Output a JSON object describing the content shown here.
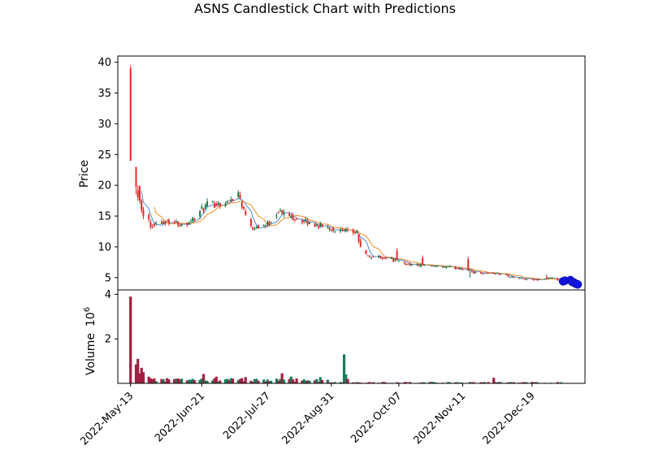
{
  "chart_data": {
    "type": "candlestick",
    "title": "ASNS Candlestick Chart with Predictions",
    "xlabel": "",
    "ylabel": "Price",
    "x_range": [
      "2022-05-06",
      "2023-01-17"
    ],
    "ylim": [
      3,
      41
    ],
    "yticks": [
      5,
      10,
      15,
      20,
      25,
      30,
      35,
      40
    ],
    "xticks": [
      "2022-May-13",
      "2022-Jun-21",
      "2022-Jul-27",
      "2022-Aug-31",
      "2022-Oct-07",
      "2022-Nov-11",
      "2022-Dec-19"
    ],
    "colors": {
      "up": "#1a7a4c",
      "down": "#e02a2a",
      "ma_short": "#4a8fd0",
      "ma_long": "#f28c28",
      "prediction": "#1414e6",
      "volume_up": "#1a7a5a",
      "volume_down": "#a02040"
    },
    "series": [
      {
        "kind": "candles",
        "ohlc_anchors": [
          {
            "date": "2022-05-13",
            "open": 39.0,
            "high": 39.5,
            "low": 24.0,
            "close": 24.0
          },
          {
            "date": "2022-05-16",
            "open": 23.0,
            "high": 23.0,
            "low": 18.5,
            "close": 19.8
          },
          {
            "date": "2022-05-17",
            "open": 19.2,
            "high": 20.0,
            "low": 17.5,
            "close": 18.0
          },
          {
            "date": "2022-05-18",
            "open": 19.8,
            "high": 20.0,
            "low": 17.0,
            "close": 17.5
          },
          {
            "date": "2022-05-19",
            "open": 17.5,
            "high": 17.8,
            "low": 15.5,
            "close": 16.0
          },
          {
            "date": "2022-05-20",
            "open": 16.0,
            "high": 16.5,
            "low": 14.5,
            "close": 15.0
          },
          {
            "date": "2022-05-23",
            "open": 15.2,
            "high": 15.5,
            "low": 14.0,
            "close": 14.5
          },
          {
            "date": "2022-05-24",
            "open": 14.0,
            "high": 14.5,
            "low": 12.8,
            "close": 13.2
          }
        ],
        "close_path": [
          {
            "date": "2022-05-25",
            "close": 13.8
          },
          {
            "date": "2022-06-03",
            "close": 14.3
          },
          {
            "date": "2022-06-10",
            "close": 13.6
          },
          {
            "date": "2022-06-16",
            "close": 14.4
          },
          {
            "date": "2022-06-21",
            "close": 16.0
          },
          {
            "date": "2022-06-24",
            "close": 16.8
          },
          {
            "date": "2022-07-05",
            "close": 17.2
          },
          {
            "date": "2022-07-11",
            "close": 18.8
          },
          {
            "date": "2022-07-14",
            "close": 16.0
          },
          {
            "date": "2022-07-19",
            "close": 13.2
          },
          {
            "date": "2022-07-27",
            "close": 13.6
          },
          {
            "date": "2022-08-02",
            "close": 15.8
          },
          {
            "date": "2022-08-10",
            "close": 14.8
          },
          {
            "date": "2022-08-19",
            "close": 13.8
          },
          {
            "date": "2022-08-31",
            "close": 13.0
          },
          {
            "date": "2022-09-06",
            "close": 12.5
          },
          {
            "date": "2022-09-14",
            "close": 12.3
          },
          {
            "date": "2022-09-16",
            "close": 9.8
          },
          {
            "date": "2022-09-20",
            "close": 8.4
          },
          {
            "date": "2022-09-30",
            "close": 8.3
          },
          {
            "date": "2022-10-07",
            "close": 7.6
          },
          {
            "date": "2022-10-12",
            "close": 7.2
          },
          {
            "date": "2022-10-25",
            "close": 6.8
          },
          {
            "date": "2022-11-11",
            "close": 6.5
          },
          {
            "date": "2022-11-18",
            "close": 5.8
          },
          {
            "date": "2022-11-30",
            "close": 5.7
          },
          {
            "date": "2022-12-09",
            "close": 5.0
          },
          {
            "date": "2022-12-19",
            "close": 4.6
          },
          {
            "date": "2022-12-28",
            "close": 4.9
          },
          {
            "date": "2023-01-04",
            "close": 4.5
          }
        ],
        "spikes": [
          {
            "date": "2022-09-16",
            "high": 11.4
          },
          {
            "date": "2022-10-06",
            "high": 9.8
          },
          {
            "date": "2022-10-20",
            "high": 8.6
          },
          {
            "date": "2022-11-14",
            "high": 8.4
          },
          {
            "date": "2022-11-15",
            "low": 5.0
          },
          {
            "date": "2022-12-27",
            "high": 5.5
          }
        ]
      },
      {
        "kind": "moving_average",
        "name": "",
        "window": 5
      },
      {
        "kind": "moving_average",
        "name": "",
        "window": 10
      },
      {
        "kind": "prediction",
        "points": [
          {
            "date": "2023-01-05",
            "value": 4.4
          },
          {
            "date": "2023-01-06",
            "value": 4.5
          },
          {
            "date": "2023-01-09",
            "value": 4.6
          },
          {
            "date": "2023-01-10",
            "value": 4.3
          },
          {
            "date": "2023-01-11",
            "value": 4.2
          },
          {
            "date": "2023-01-12",
            "value": 4.0
          },
          {
            "date": "2023-01-13",
            "value": 3.9
          }
        ]
      }
    ],
    "volume": {
      "ylabel": "Volume",
      "scale_label": "10^6",
      "ylim": [
        0,
        4.2
      ],
      "yticks": [
        2,
        4
      ],
      "anchors": [
        {
          "date": "2022-05-13",
          "value": 3.9
        },
        {
          "date": "2022-05-16",
          "value": 0.85
        },
        {
          "date": "2022-05-17",
          "value": 1.1
        },
        {
          "date": "2022-05-18",
          "value": 0.45
        },
        {
          "date": "2022-05-19",
          "value": 0.7
        },
        {
          "date": "2022-05-20",
          "value": 0.5
        },
        {
          "date": "2022-05-23",
          "value": 0.3
        },
        {
          "date": "2022-05-24",
          "value": 0.22
        },
        {
          "date": "2022-06-22",
          "value": 0.42
        },
        {
          "date": "2022-06-29",
          "value": 0.3
        },
        {
          "date": "2022-07-15",
          "value": 0.28
        },
        {
          "date": "2022-08-04",
          "value": 0.45
        },
        {
          "date": "2022-08-09",
          "value": 0.3
        },
        {
          "date": "2022-08-25",
          "value": 0.28
        },
        {
          "date": "2022-09-07",
          "value": 1.3
        },
        {
          "date": "2022-09-08",
          "value": 0.4
        },
        {
          "date": "2022-09-09",
          "value": 0.2
        },
        {
          "date": "2022-11-28",
          "value": 0.25
        }
      ]
    }
  }
}
